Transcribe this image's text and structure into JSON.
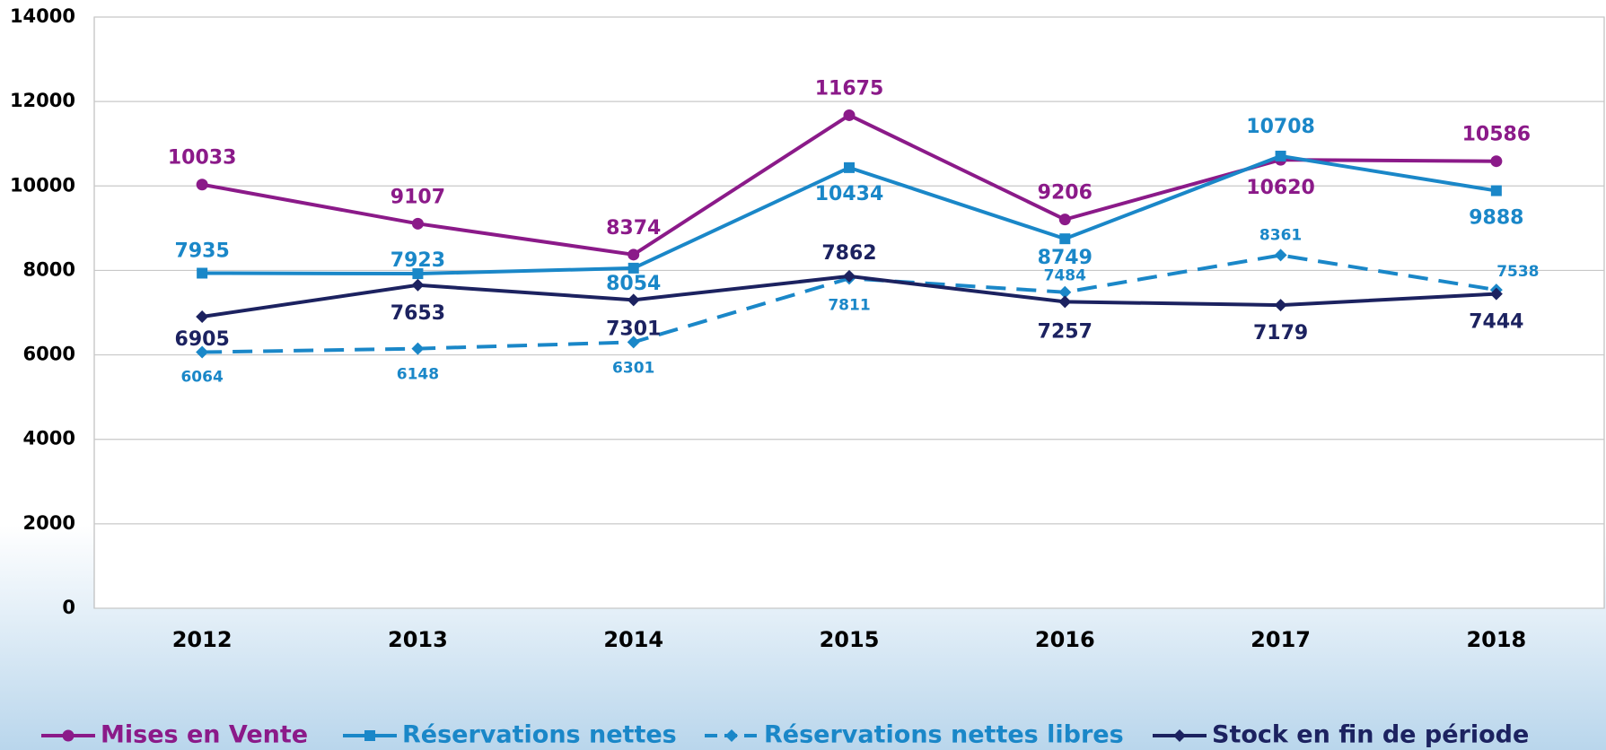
{
  "chart_data": {
    "type": "line",
    "categories": [
      "2012",
      "2013",
      "2014",
      "2015",
      "2016",
      "2017",
      "2018"
    ],
    "series": [
      {
        "name": "Mises en Vente",
        "color": "#8b1a89",
        "marker": "circle",
        "dashed": false,
        "values": [
          10033,
          9107,
          8374,
          11675,
          9206,
          10620,
          10586
        ]
      },
      {
        "name": "Réservations nettes",
        "color": "#1a87c8",
        "marker": "square",
        "dashed": false,
        "values": [
          7935,
          7923,
          8054,
          10434,
          8749,
          10708,
          9888
        ]
      },
      {
        "name": "Réservations nettes libres",
        "color": "#1a87c8",
        "marker": "diamond",
        "dashed": true,
        "values": [
          6064,
          6148,
          6301,
          7811,
          7484,
          8361,
          7538
        ]
      },
      {
        "name": "Stock en fin de période",
        "color": "#1c2260",
        "marker": "diamond",
        "dashed": false,
        "values": [
          6905,
          7653,
          7301,
          7862,
          7257,
          7179,
          7444
        ]
      }
    ],
    "ylim": [
      0,
      14000
    ],
    "yticks": [
      0,
      2000,
      4000,
      6000,
      8000,
      10000,
      12000,
      14000
    ],
    "grid": true
  }
}
